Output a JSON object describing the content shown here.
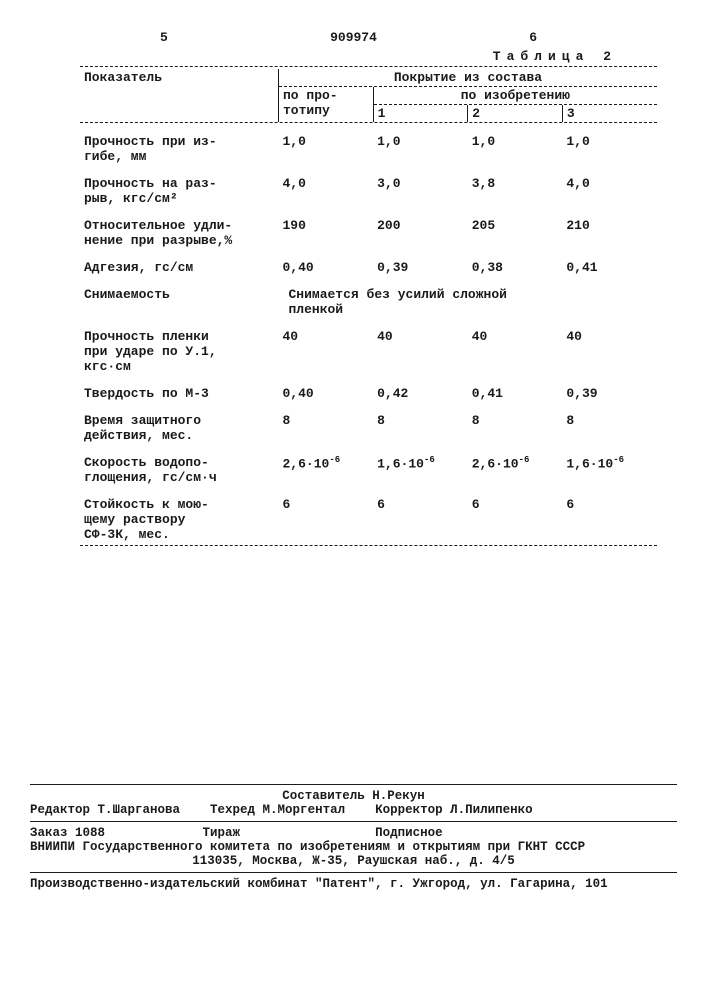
{
  "header": {
    "left_num": "5",
    "doc_num": "909974",
    "right_num": "6"
  },
  "table": {
    "title": "Таблица 2",
    "col_param": "Показатель",
    "col_group": "Покрытие из состава",
    "col_proto": "по про-\nтотипу",
    "col_inv": "по изобретению",
    "col_1": "1",
    "col_2": "2",
    "col_3": "3",
    "rows": [
      {
        "label": "Прочность при из-\nгибе, мм",
        "v": [
          "1,0",
          "1,0",
          "1,0",
          "1,0"
        ]
      },
      {
        "label": "Прочность на раз-\nрыв, кгс/см²",
        "v": [
          "4,0",
          "3,0",
          "3,8",
          "4,0"
        ]
      },
      {
        "label": "Относительное удли-\nнение при разрыве,%",
        "v": [
          "190",
          "200",
          "205",
          "210"
        ]
      },
      {
        "label": "Адгезия, гс/см",
        "v": [
          "0,40",
          "0,39",
          "0,38",
          "0,41"
        ]
      }
    ],
    "snim_label": "Снимаемость",
    "snim_value": "Снимается без усилий сложной\nпленкой",
    "rows2": [
      {
        "label": "Прочность пленки\nпри ударе по У.1,\nкгс·см",
        "v": [
          "40",
          "40",
          "40",
          "40"
        ]
      },
      {
        "label": "Твердость по М-3",
        "v": [
          "0,40",
          "0,42",
          "0,41",
          "0,39"
        ]
      },
      {
        "label": "Время защитного\nдействия, мес.",
        "v": [
          "8",
          "8",
          "8",
          "8"
        ]
      }
    ],
    "water_label": "Скорость водопо-\nглощения, гс/см·ч",
    "water_v": [
      "2,6·10",
      "1,6·10",
      "2,6·10",
      "1,6·10"
    ],
    "water_exp": "-6",
    "rows3": [
      {
        "label": "Стойкость к мою-\nщему раствору\nСФ-3К, мес.",
        "v": [
          "6",
          "6",
          "6",
          "6"
        ]
      }
    ]
  },
  "footer": {
    "line1_left": "Редактор Т.Шарганова",
    "line1_mid_a": "Составитель Н.Рекун",
    "line1_mid_b": "Техред М.Моргентал",
    "line1_right": "Корректор Л.Пилипенко",
    "line2_a": "Заказ 1088",
    "line2_b": "Тираж",
    "line2_c": "Подписное",
    "line3": "ВНИИПИ Государственного комитета по изобретениям и открытиям при ГКНТ СССР",
    "line4": "113035, Москва, Ж-35, Раушская наб., д. 4/5",
    "line5": "Производственно-издательский комбинат \"Патент\", г. Ужгород, ул. Гагарина, 101"
  }
}
